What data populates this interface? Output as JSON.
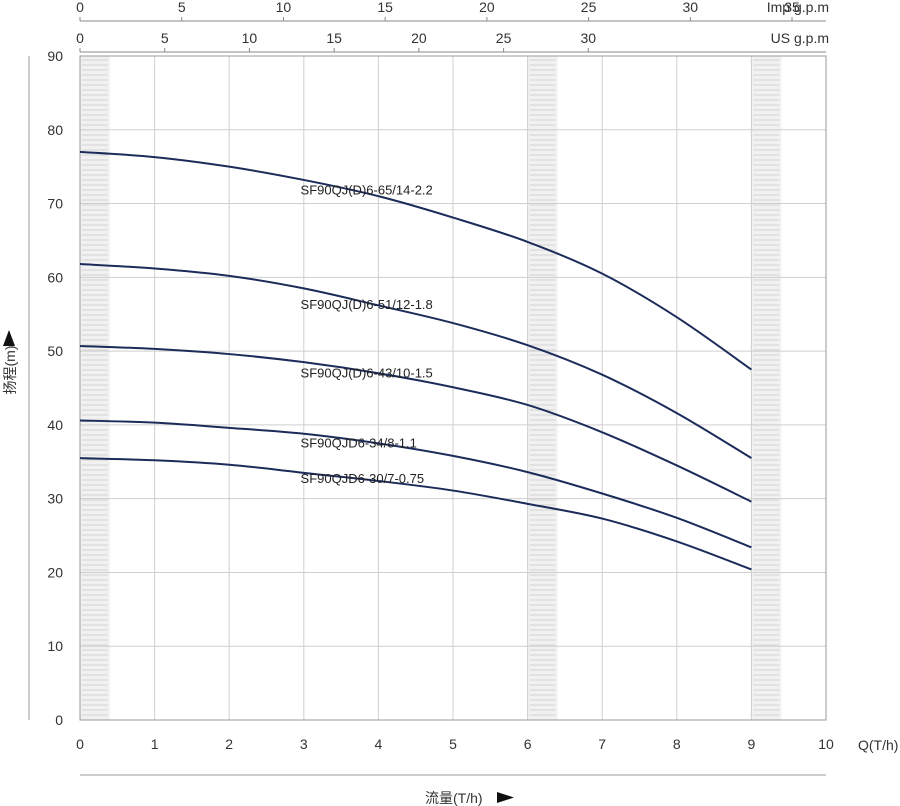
{
  "chart_data": {
    "type": "line",
    "title": "",
    "xlabel": "流量(T/h)",
    "ylabel": "扬程(m)",
    "x_unit_label": "Q(T/h)",
    "xlim": [
      0,
      10
    ],
    "ylim": [
      0,
      90
    ],
    "x_ticks": [
      "0",
      "1",
      "2",
      "3",
      "4",
      "5",
      "6",
      "7",
      "8",
      "9",
      "10"
    ],
    "y_ticks": [
      "0",
      "10",
      "20",
      "30",
      "40",
      "50",
      "60",
      "70",
      "80",
      "90"
    ],
    "imp_axis": {
      "label": "Imp g.p.m",
      "ticks": [
        "0",
        "5",
        "10",
        "15",
        "20",
        "25",
        "30",
        "35"
      ],
      "values": [
        0,
        5,
        10,
        15,
        20,
        25,
        30,
        35
      ],
      "per_unit_x": 3.667
    },
    "us_axis": {
      "label": "US g.p.m",
      "ticks": [
        "0",
        "5",
        "10",
        "15",
        "20",
        "25",
        "30"
      ],
      "values": [
        0,
        5,
        10,
        15,
        20,
        25,
        30
      ],
      "per_unit_x": 4.403
    },
    "grid": true,
    "shaded_bands": [
      [
        0,
        0.4
      ],
      [
        6,
        6.4
      ],
      [
        9,
        9.4
      ]
    ],
    "line_color": "#1c2c5a",
    "series": [
      {
        "name": "SF90QJ(D)6-65/14-2.2",
        "x": [
          0,
          1,
          2,
          3,
          4,
          5,
          6,
          7,
          8,
          9
        ],
        "y": [
          77,
          76.3,
          75,
          73.2,
          71,
          68.1,
          64.8,
          60.5,
          54.6,
          47.5
        ],
        "label_at": [
          3.6,
          73.1
        ]
      },
      {
        "name": "SF90QJ(D)6-51/12-1.8",
        "x": [
          0,
          1,
          2,
          3,
          4,
          5,
          6,
          7,
          8,
          9
        ],
        "y": [
          61.8,
          61.2,
          60.2,
          58.5,
          56.2,
          53.8,
          50.8,
          46.8,
          41.6,
          35.5
        ],
        "label_at": [
          3.6,
          57.6
        ]
      },
      {
        "name": "SF90QJ(D)6-43/10-1.5",
        "x": [
          0,
          1,
          2,
          3,
          4,
          5,
          6,
          7,
          8,
          9
        ],
        "y": [
          50.7,
          50.3,
          49.6,
          48.5,
          47,
          45.1,
          42.7,
          39,
          34.5,
          29.6
        ],
        "label_at": [
          3.6,
          48.3
        ]
      },
      {
        "name": "SF90QJD6-34/8-1.1",
        "x": [
          0,
          1,
          2,
          3,
          4,
          5,
          6,
          7,
          8,
          9
        ],
        "y": [
          40.6,
          40.3,
          39.6,
          38.8,
          37.5,
          35.8,
          33.6,
          30.7,
          27.4,
          23.4
        ],
        "label_at": [
          3.6,
          38.8
        ]
      },
      {
        "name": "SF90QJD6-30/7-0.75",
        "x": [
          0,
          1,
          2,
          3,
          4,
          5,
          6,
          7,
          8,
          9
        ],
        "y": [
          35.5,
          35.2,
          34.6,
          33.5,
          32.4,
          31.1,
          29.3,
          27.3,
          24.2,
          20.4
        ],
        "label_at": [
          3.6,
          34.0
        ]
      }
    ]
  }
}
